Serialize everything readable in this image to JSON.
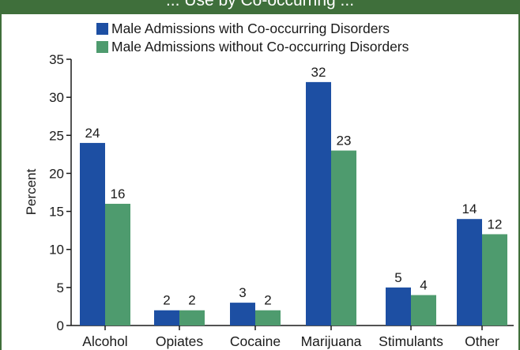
{
  "header": {
    "title_fragment": "... Use by Co-occurring ..."
  },
  "colors": {
    "frame": "#3f6f3b",
    "series_with": "#1d4fa3",
    "series_without": "#4e9b6e"
  },
  "chart_data": {
    "type": "bar",
    "categories": [
      "Alcohol",
      "Opiates",
      "Cocaine",
      "Marijuana",
      "Stimulants",
      "Other"
    ],
    "series": [
      {
        "name": "Male Admissions with Co-occurring Disorders",
        "values": [
          24,
          2,
          3,
          32,
          5,
          14
        ],
        "color": "#1d4fa3"
      },
      {
        "name": "Male Admissions without Co-occurring Disorders",
        "values": [
          16,
          2,
          2,
          23,
          4,
          12
        ],
        "color": "#4e9b6e"
      }
    ],
    "ylabel": "Percent",
    "xlabel": "",
    "ylim": [
      0,
      35
    ],
    "yticks": [
      0,
      5,
      10,
      15,
      20,
      25,
      30,
      35
    ],
    "grid": false,
    "legend_position": "top"
  }
}
